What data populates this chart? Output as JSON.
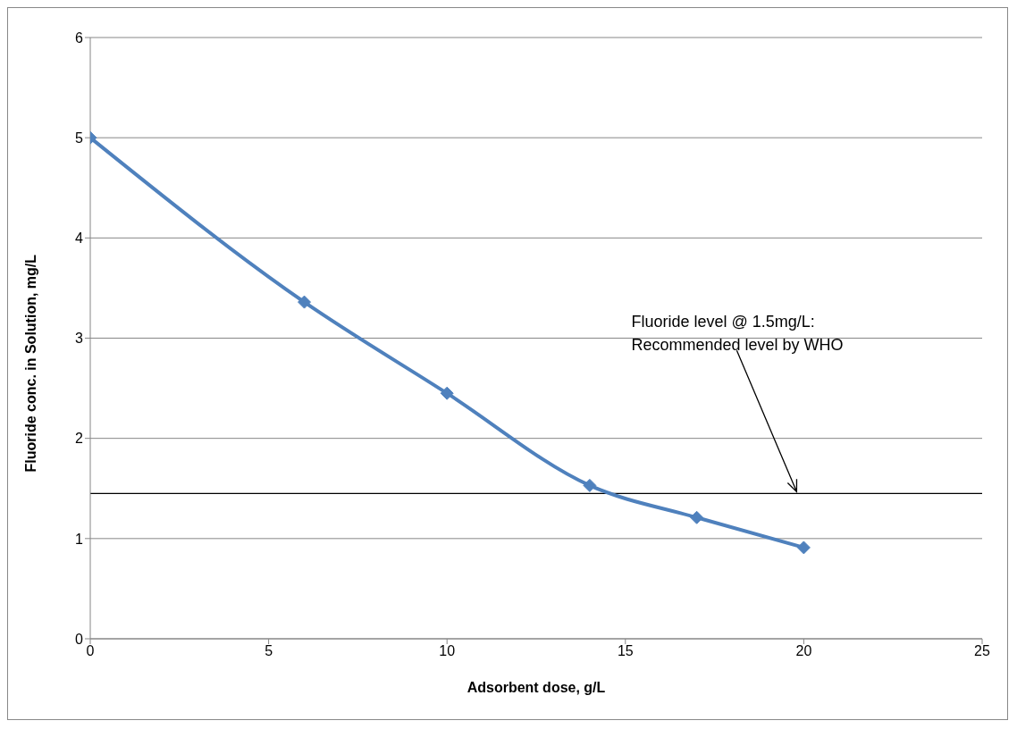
{
  "chart_data": {
    "type": "line",
    "xlabel": "Adsorbent dose, g/L",
    "ylabel": "Fluoride conc. in Solution, mg/L",
    "x": [
      0,
      6,
      10,
      14,
      17,
      20
    ],
    "series": [
      {
        "color": "#4f81bd",
        "values": [
          5,
          3.36,
          2.45,
          1.53,
          1.21,
          0.91
        ]
      }
    ],
    "xlim": [
      0,
      25
    ],
    "xticks": [
      0,
      5,
      10,
      15,
      20,
      25
    ],
    "ylim": [
      0,
      6
    ],
    "yticks": [
      0,
      1,
      2,
      3,
      4,
      5,
      6
    ],
    "grid": "y",
    "marker": "diamond",
    "line_style": "solid",
    "legend": false,
    "ref_lines": [
      {
        "axis": "y",
        "value": 1.45,
        "color": "#000000"
      }
    ],
    "annotations": [
      {
        "text": "Fluoride level @ 1.5mg/L: Recommended level by WHO",
        "x": 19.8,
        "y": 1.45
      }
    ]
  }
}
